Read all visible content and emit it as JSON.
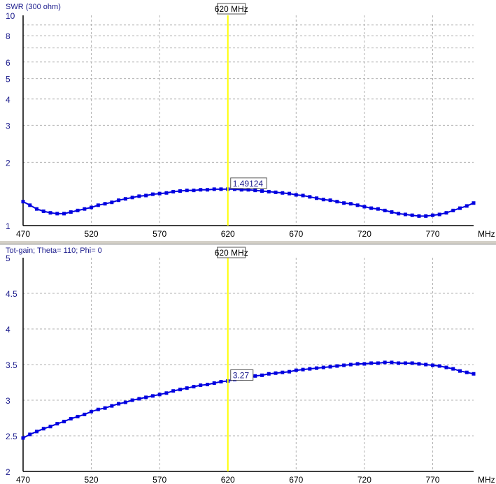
{
  "colors": {
    "series": "#0000e0",
    "marker": "#ffff00",
    "grid": "#b0b0b0",
    "axis_label": "#1a1a8c"
  },
  "chart_data": [
    {
      "type": "line",
      "title": "SWR (300 ohm)",
      "xlabel": "MHz",
      "ylabel": "",
      "xlim": [
        470,
        800
      ],
      "ylim": [
        1,
        10
      ],
      "yscale": "log",
      "grid": true,
      "x_ticks": [
        "470",
        "520",
        "570",
        "620",
        "670",
        "720",
        "770"
      ],
      "y_ticks": [
        "10",
        "8",
        "6",
        "5",
        "4",
        "3",
        "2",
        "1"
      ],
      "y_gridlines": [
        9,
        8,
        7,
        6,
        5,
        4,
        3,
        2
      ],
      "marker": {
        "x": 620,
        "label": "620 MHz",
        "value_label": "1.49124"
      },
      "x": [
        470,
        475,
        480,
        485,
        490,
        495,
        500,
        505,
        510,
        515,
        520,
        525,
        530,
        535,
        540,
        545,
        550,
        555,
        560,
        565,
        570,
        575,
        580,
        585,
        590,
        595,
        600,
        605,
        610,
        615,
        620,
        625,
        630,
        635,
        640,
        645,
        650,
        655,
        660,
        665,
        670,
        675,
        680,
        685,
        690,
        695,
        700,
        705,
        710,
        715,
        720,
        725,
        730,
        735,
        740,
        745,
        750,
        755,
        760,
        765,
        770,
        775,
        780,
        785,
        790,
        795,
        800
      ],
      "values": [
        1.3,
        1.25,
        1.2,
        1.17,
        1.15,
        1.14,
        1.14,
        1.16,
        1.18,
        1.2,
        1.22,
        1.25,
        1.27,
        1.29,
        1.32,
        1.34,
        1.36,
        1.38,
        1.39,
        1.41,
        1.42,
        1.43,
        1.45,
        1.46,
        1.47,
        1.47,
        1.48,
        1.48,
        1.49,
        1.49,
        1.491,
        1.49,
        1.48,
        1.48,
        1.47,
        1.46,
        1.45,
        1.44,
        1.43,
        1.42,
        1.4,
        1.39,
        1.37,
        1.35,
        1.33,
        1.32,
        1.3,
        1.28,
        1.27,
        1.25,
        1.23,
        1.21,
        1.2,
        1.18,
        1.16,
        1.14,
        1.13,
        1.12,
        1.11,
        1.11,
        1.12,
        1.13,
        1.15,
        1.18,
        1.21,
        1.24,
        1.28
      ]
    },
    {
      "type": "line",
      "title": "Tot-gain; Theta= 110; Phi= 0",
      "xlabel": "MHz",
      "ylabel": "",
      "xlim": [
        470,
        800
      ],
      "ylim": [
        2,
        5
      ],
      "grid": true,
      "x_ticks": [
        "470",
        "520",
        "570",
        "620",
        "670",
        "720",
        "770"
      ],
      "y_ticks": [
        "5",
        "4.5",
        "4",
        "3.5",
        "3",
        "2.5",
        "2"
      ],
      "y_gridlines": [
        4.5,
        4,
        3.5,
        3,
        2.5
      ],
      "marker": {
        "x": 620,
        "label": "620 MHz",
        "value_label": "3.27"
      },
      "x": [
        470,
        475,
        480,
        485,
        490,
        495,
        500,
        505,
        510,
        515,
        520,
        525,
        530,
        535,
        540,
        545,
        550,
        555,
        560,
        565,
        570,
        575,
        580,
        585,
        590,
        595,
        600,
        605,
        610,
        615,
        620,
        625,
        630,
        635,
        640,
        645,
        650,
        655,
        660,
        665,
        670,
        675,
        680,
        685,
        690,
        695,
        700,
        705,
        710,
        715,
        720,
        725,
        730,
        735,
        740,
        745,
        750,
        755,
        760,
        765,
        770,
        775,
        780,
        785,
        790,
        795,
        800
      ],
      "values": [
        2.47,
        2.52,
        2.56,
        2.6,
        2.63,
        2.67,
        2.7,
        2.74,
        2.77,
        2.8,
        2.84,
        2.87,
        2.89,
        2.92,
        2.95,
        2.97,
        3.0,
        3.02,
        3.04,
        3.06,
        3.08,
        3.1,
        3.13,
        3.15,
        3.17,
        3.19,
        3.21,
        3.22,
        3.24,
        3.26,
        3.27,
        3.29,
        3.3,
        3.32,
        3.34,
        3.35,
        3.37,
        3.38,
        3.39,
        3.4,
        3.42,
        3.43,
        3.44,
        3.45,
        3.46,
        3.47,
        3.48,
        3.49,
        3.5,
        3.51,
        3.51,
        3.52,
        3.52,
        3.53,
        3.53,
        3.52,
        3.52,
        3.52,
        3.51,
        3.5,
        3.49,
        3.48,
        3.46,
        3.44,
        3.41,
        3.39,
        3.37
      ]
    }
  ]
}
